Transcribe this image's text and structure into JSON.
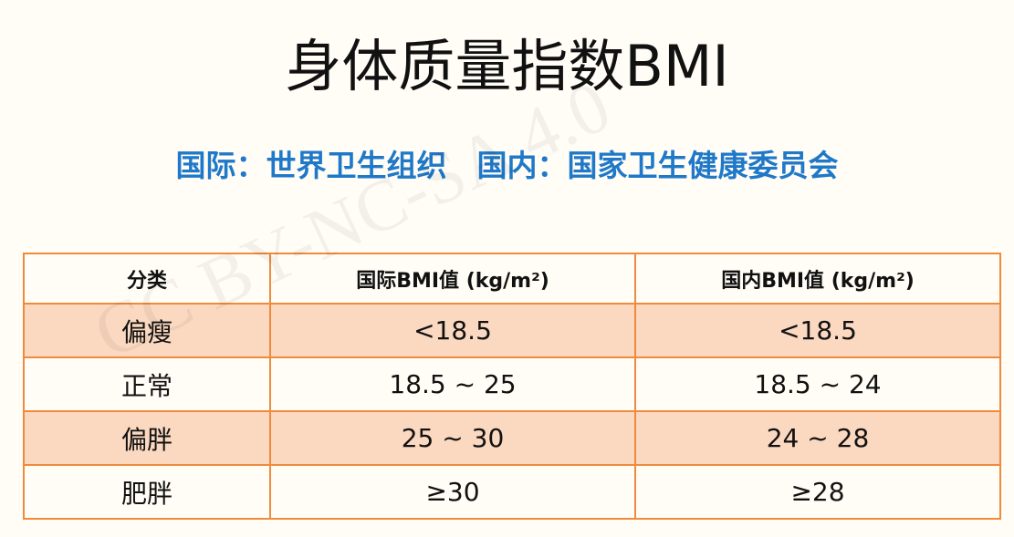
{
  "title": "身体质量指数BMI",
  "subtitle": "国际：世界卫生组织　国内：国家卫生健康委员会",
  "watermark": "CC BY-NC-SA 4.0",
  "table": {
    "header": [
      "分类",
      "国际BMI值 (kg/m²)",
      "国内BMI值 (kg/m²)"
    ],
    "rows": [
      [
        "偏瘦",
        "<18.5",
        "<18.5"
      ],
      [
        "正常",
        "18.5 ~ 25",
        "18.5 ~ 24"
      ],
      [
        "偏胖",
        "25 ~ 30",
        "24 ~ 28"
      ],
      [
        "肥胖",
        "≥30",
        "≥28"
      ]
    ]
  }
}
